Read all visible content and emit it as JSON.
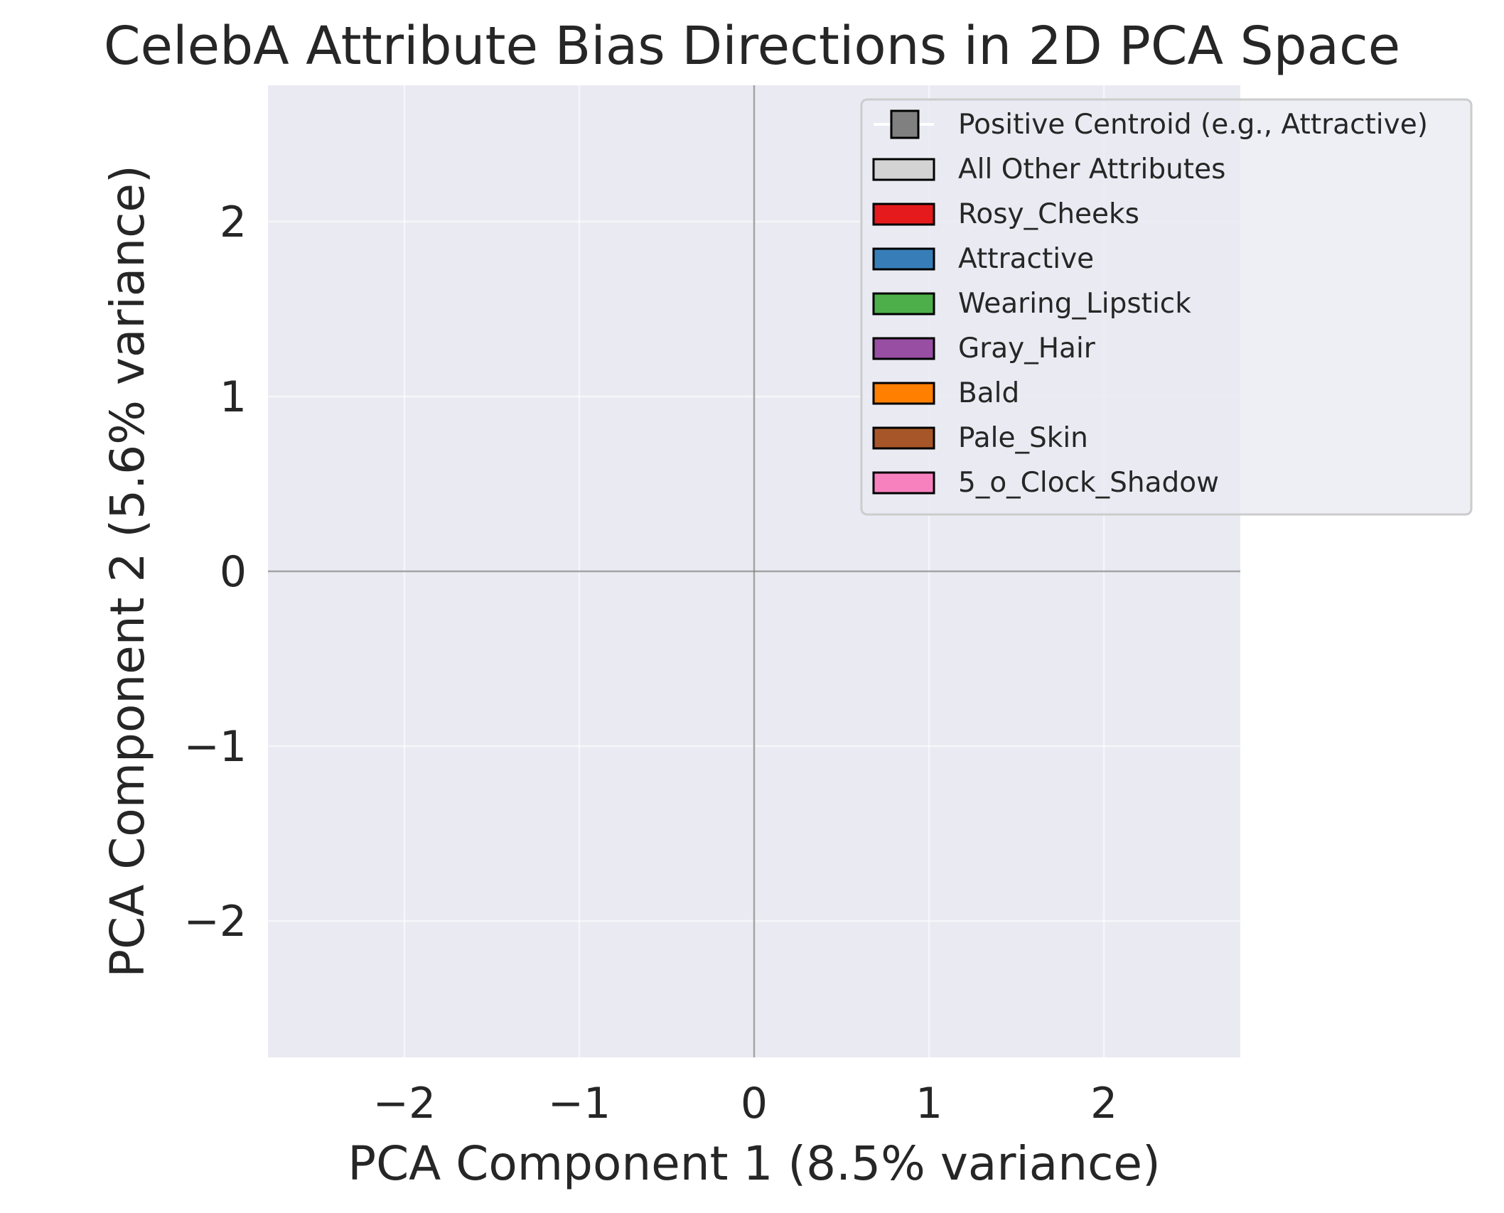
{
  "chart_data": {
    "type": "scatter",
    "title": "CelebA Attribute Bias Directions in 2D PCA Space",
    "xlabel": "PCA Component 1 (8.5% variance)",
    "ylabel": "PCA Component 2 (5.6% variance)",
    "xlim": [
      -2.78,
      2.78
    ],
    "ylim": [
      -2.78,
      2.78
    ],
    "x_ticks": [
      -2,
      -1,
      0,
      1,
      2
    ],
    "x_tick_labels": [
      "−2",
      "−1",
      "0",
      "1",
      "2"
    ],
    "y_ticks": [
      -2,
      -1,
      0,
      1,
      2
    ],
    "y_tick_labels": [
      "−2",
      "−1",
      "0",
      "1",
      "2"
    ],
    "grid": true,
    "reference_lines": {
      "x": 0,
      "y": 0
    },
    "legend_position": "upper-right",
    "legend": [
      {
        "label": "Positive Centroid (e.g., Attractive)",
        "color": "#808080",
        "marker": "square"
      },
      {
        "label": "All Other Attributes",
        "color": "#d3d3d3",
        "marker": "patch"
      },
      {
        "label": "Rosy_Cheeks",
        "color": "#e41a1c",
        "marker": "patch"
      },
      {
        "label": "Attractive",
        "color": "#377eb8",
        "marker": "patch"
      },
      {
        "label": "Wearing_Lipstick",
        "color": "#4daf4a",
        "marker": "patch"
      },
      {
        "label": "Gray_Hair",
        "color": "#984ea3",
        "marker": "patch"
      },
      {
        "label": "Bald",
        "color": "#ff7f00",
        "marker": "patch"
      },
      {
        "label": "Pale_Skin",
        "color": "#a65628",
        "marker": "patch"
      },
      {
        "label": "5_o_Clock_Shadow",
        "color": "#f781bf",
        "marker": "patch"
      }
    ],
    "series": []
  },
  "colors": {
    "plot_background": "#eaeaf2",
    "grid": "#ffffff",
    "reference_line": "#808080",
    "text": "#262626"
  }
}
